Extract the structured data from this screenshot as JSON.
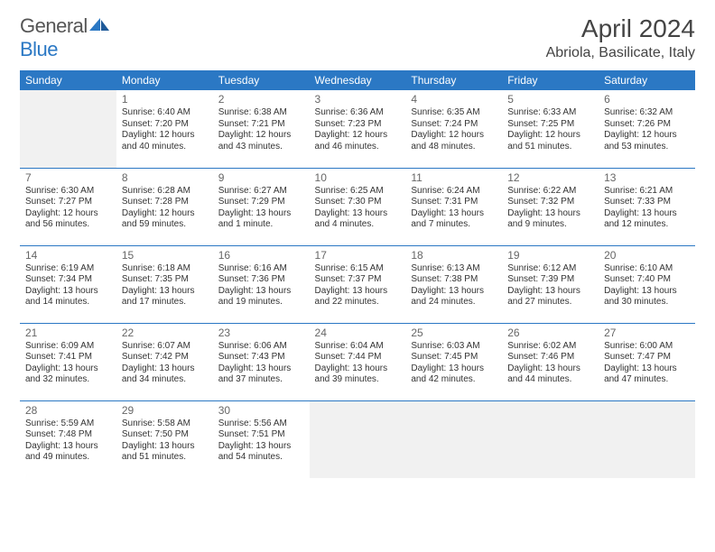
{
  "logo": {
    "general": "General",
    "blue": "Blue"
  },
  "title": "April 2024",
  "location": "Abriola, Basilicate, Italy",
  "colors": {
    "header_bg": "#2b78c4",
    "header_text": "#ffffff",
    "border": "#2b78c4",
    "empty_bg": "#f1f1f1",
    "text": "#333333",
    "daynum": "#666666",
    "logo_gray": "#555555",
    "logo_blue": "#2b78c4"
  },
  "typography": {
    "month_title_fontsize": 28,
    "location_fontsize": 16,
    "weekday_fontsize": 12,
    "daynum_fontsize": 12,
    "body_fontsize": 10,
    "logo_fontsize": 22
  },
  "weekdays": [
    "Sunday",
    "Monday",
    "Tuesday",
    "Wednesday",
    "Thursday",
    "Friday",
    "Saturday"
  ],
  "weeks": [
    [
      {
        "empty": true
      },
      {
        "n": "1",
        "sr": "Sunrise: 6:40 AM",
        "ss": "Sunset: 7:20 PM",
        "dl": "Daylight: 12 hours and 40 minutes."
      },
      {
        "n": "2",
        "sr": "Sunrise: 6:38 AM",
        "ss": "Sunset: 7:21 PM",
        "dl": "Daylight: 12 hours and 43 minutes."
      },
      {
        "n": "3",
        "sr": "Sunrise: 6:36 AM",
        "ss": "Sunset: 7:23 PM",
        "dl": "Daylight: 12 hours and 46 minutes."
      },
      {
        "n": "4",
        "sr": "Sunrise: 6:35 AM",
        "ss": "Sunset: 7:24 PM",
        "dl": "Daylight: 12 hours and 48 minutes."
      },
      {
        "n": "5",
        "sr": "Sunrise: 6:33 AM",
        "ss": "Sunset: 7:25 PM",
        "dl": "Daylight: 12 hours and 51 minutes."
      },
      {
        "n": "6",
        "sr": "Sunrise: 6:32 AM",
        "ss": "Sunset: 7:26 PM",
        "dl": "Daylight: 12 hours and 53 minutes."
      }
    ],
    [
      {
        "n": "7",
        "sr": "Sunrise: 6:30 AM",
        "ss": "Sunset: 7:27 PM",
        "dl": "Daylight: 12 hours and 56 minutes."
      },
      {
        "n": "8",
        "sr": "Sunrise: 6:28 AM",
        "ss": "Sunset: 7:28 PM",
        "dl": "Daylight: 12 hours and 59 minutes."
      },
      {
        "n": "9",
        "sr": "Sunrise: 6:27 AM",
        "ss": "Sunset: 7:29 PM",
        "dl": "Daylight: 13 hours and 1 minute."
      },
      {
        "n": "10",
        "sr": "Sunrise: 6:25 AM",
        "ss": "Sunset: 7:30 PM",
        "dl": "Daylight: 13 hours and 4 minutes."
      },
      {
        "n": "11",
        "sr": "Sunrise: 6:24 AM",
        "ss": "Sunset: 7:31 PM",
        "dl": "Daylight: 13 hours and 7 minutes."
      },
      {
        "n": "12",
        "sr": "Sunrise: 6:22 AM",
        "ss": "Sunset: 7:32 PM",
        "dl": "Daylight: 13 hours and 9 minutes."
      },
      {
        "n": "13",
        "sr": "Sunrise: 6:21 AM",
        "ss": "Sunset: 7:33 PM",
        "dl": "Daylight: 13 hours and 12 minutes."
      }
    ],
    [
      {
        "n": "14",
        "sr": "Sunrise: 6:19 AM",
        "ss": "Sunset: 7:34 PM",
        "dl": "Daylight: 13 hours and 14 minutes."
      },
      {
        "n": "15",
        "sr": "Sunrise: 6:18 AM",
        "ss": "Sunset: 7:35 PM",
        "dl": "Daylight: 13 hours and 17 minutes."
      },
      {
        "n": "16",
        "sr": "Sunrise: 6:16 AM",
        "ss": "Sunset: 7:36 PM",
        "dl": "Daylight: 13 hours and 19 minutes."
      },
      {
        "n": "17",
        "sr": "Sunrise: 6:15 AM",
        "ss": "Sunset: 7:37 PM",
        "dl": "Daylight: 13 hours and 22 minutes."
      },
      {
        "n": "18",
        "sr": "Sunrise: 6:13 AM",
        "ss": "Sunset: 7:38 PM",
        "dl": "Daylight: 13 hours and 24 minutes."
      },
      {
        "n": "19",
        "sr": "Sunrise: 6:12 AM",
        "ss": "Sunset: 7:39 PM",
        "dl": "Daylight: 13 hours and 27 minutes."
      },
      {
        "n": "20",
        "sr": "Sunrise: 6:10 AM",
        "ss": "Sunset: 7:40 PM",
        "dl": "Daylight: 13 hours and 30 minutes."
      }
    ],
    [
      {
        "n": "21",
        "sr": "Sunrise: 6:09 AM",
        "ss": "Sunset: 7:41 PM",
        "dl": "Daylight: 13 hours and 32 minutes."
      },
      {
        "n": "22",
        "sr": "Sunrise: 6:07 AM",
        "ss": "Sunset: 7:42 PM",
        "dl": "Daylight: 13 hours and 34 minutes."
      },
      {
        "n": "23",
        "sr": "Sunrise: 6:06 AM",
        "ss": "Sunset: 7:43 PM",
        "dl": "Daylight: 13 hours and 37 minutes."
      },
      {
        "n": "24",
        "sr": "Sunrise: 6:04 AM",
        "ss": "Sunset: 7:44 PM",
        "dl": "Daylight: 13 hours and 39 minutes."
      },
      {
        "n": "25",
        "sr": "Sunrise: 6:03 AM",
        "ss": "Sunset: 7:45 PM",
        "dl": "Daylight: 13 hours and 42 minutes."
      },
      {
        "n": "26",
        "sr": "Sunrise: 6:02 AM",
        "ss": "Sunset: 7:46 PM",
        "dl": "Daylight: 13 hours and 44 minutes."
      },
      {
        "n": "27",
        "sr": "Sunrise: 6:00 AM",
        "ss": "Sunset: 7:47 PM",
        "dl": "Daylight: 13 hours and 47 minutes."
      }
    ],
    [
      {
        "n": "28",
        "sr": "Sunrise: 5:59 AM",
        "ss": "Sunset: 7:48 PM",
        "dl": "Daylight: 13 hours and 49 minutes."
      },
      {
        "n": "29",
        "sr": "Sunrise: 5:58 AM",
        "ss": "Sunset: 7:50 PM",
        "dl": "Daylight: 13 hours and 51 minutes."
      },
      {
        "n": "30",
        "sr": "Sunrise: 5:56 AM",
        "ss": "Sunset: 7:51 PM",
        "dl": "Daylight: 13 hours and 54 minutes."
      },
      {
        "empty": true
      },
      {
        "empty": true
      },
      {
        "empty": true
      },
      {
        "empty": true
      }
    ]
  ]
}
